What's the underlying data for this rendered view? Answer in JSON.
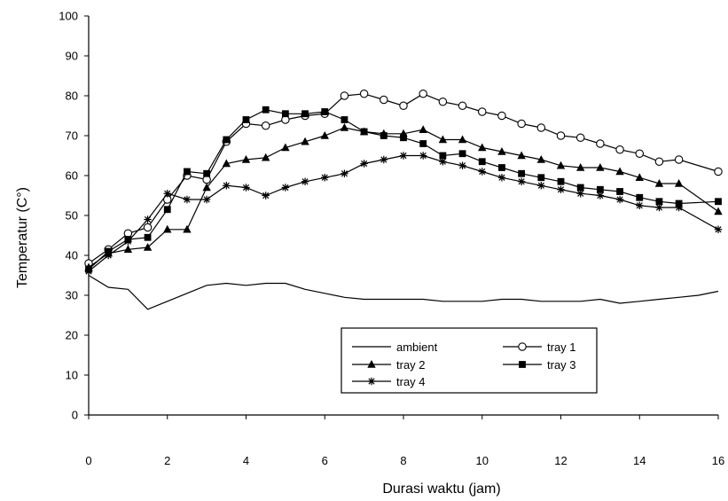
{
  "chart_data": {
    "type": "line",
    "title": "",
    "xlabel": "Durasi waktu (jam)",
    "ylabel": "Temperatur   (C°)",
    "xlim": [
      0,
      16
    ],
    "ylim": [
      0,
      100
    ],
    "xticks": [
      0,
      2,
      4,
      6,
      8,
      10,
      12,
      14,
      16
    ],
    "yticks": [
      0,
      10,
      20,
      30,
      40,
      50,
      60,
      70,
      80,
      90,
      100
    ],
    "grid": false,
    "legend_position": "bottom-right",
    "series": [
      {
        "name": "ambient",
        "marker": "none",
        "x": [
          0,
          0.5,
          1,
          1.5,
          2,
          2.5,
          3,
          3.5,
          4,
          4.5,
          5,
          5.5,
          6,
          6.5,
          7,
          7.5,
          8,
          8.5,
          9,
          9.5,
          10,
          10.5,
          11,
          11.5,
          12,
          12.5,
          13,
          13.5,
          14,
          14.5,
          15,
          15.5,
          16
        ],
        "y": [
          35,
          32,
          31.5,
          26.5,
          28.5,
          30.5,
          32.5,
          33,
          32.5,
          33,
          33,
          31.5,
          30.5,
          29.5,
          29,
          29,
          29,
          29,
          28.5,
          28.5,
          28.5,
          29,
          29,
          28.5,
          28.5,
          28.5,
          29,
          28,
          28.5,
          29,
          29.5,
          30,
          31
        ]
      },
      {
        "name": "tray 1",
        "marker": "open-circle",
        "x": [
          0,
          0.5,
          1,
          1.5,
          2,
          2.5,
          3,
          3.5,
          4,
          4.5,
          5,
          5.5,
          6,
          6.5,
          7,
          7.5,
          8,
          8.5,
          9,
          9.5,
          10,
          10.5,
          11,
          11.5,
          12,
          12.5,
          13,
          13.5,
          14,
          14.5,
          15,
          16
        ],
        "y": [
          38,
          41.5,
          45.5,
          47,
          54,
          60,
          59,
          68.5,
          73,
          72.5,
          74,
          75,
          75.5,
          80,
          80.5,
          79,
          77.5,
          80.5,
          78.5,
          77.5,
          76,
          75,
          73,
          72,
          70,
          69.5,
          68,
          66.5,
          65.5,
          63.5,
          64,
          61
        ]
      },
      {
        "name": "tray 2",
        "marker": "filled-triangle",
        "x": [
          0,
          0.5,
          1,
          1.5,
          2,
          2.5,
          3,
          3.5,
          4,
          4.5,
          5,
          5.5,
          6,
          6.5,
          7,
          7.5,
          8,
          8.5,
          9,
          9.5,
          10,
          10.5,
          11,
          11.5,
          12,
          12.5,
          13,
          13.5,
          14,
          14.5,
          15,
          16
        ],
        "y": [
          37,
          40.5,
          41.5,
          42,
          46.5,
          46.5,
          57,
          63,
          64,
          64.5,
          67,
          68.5,
          70,
          72,
          71,
          70.5,
          70.5,
          71.5,
          69,
          69,
          67,
          66,
          65,
          64,
          62.5,
          62,
          62,
          61,
          59.5,
          58,
          58,
          51
        ]
      },
      {
        "name": "tray 3",
        "marker": "filled-square",
        "x": [
          0,
          0.5,
          1,
          1.5,
          2,
          2.5,
          3,
          3.5,
          4,
          4.5,
          5,
          5.5,
          6,
          6.5,
          7,
          7.5,
          8,
          8.5,
          9,
          9.5,
          10,
          10.5,
          11,
          11.5,
          12,
          12.5,
          13,
          13.5,
          14,
          14.5,
          15,
          16
        ],
        "y": [
          36.5,
          41,
          44,
          44.5,
          51.5,
          61,
          60.5,
          69,
          74,
          76.5,
          75.5,
          75.5,
          76,
          74,
          71,
          70,
          69.5,
          68,
          65,
          65.5,
          63.5,
          62,
          60.5,
          59.5,
          58.5,
          57,
          56.5,
          56,
          54.5,
          53.5,
          53,
          53.5
        ]
      },
      {
        "name": "tray 4",
        "marker": "star",
        "x": [
          0,
          0.5,
          1,
          1.5,
          2,
          2.5,
          3,
          3.5,
          4,
          4.5,
          5,
          5.5,
          6,
          6.5,
          7,
          7.5,
          8,
          8.5,
          9,
          9.5,
          10,
          10.5,
          11,
          11.5,
          12,
          12.5,
          13,
          13.5,
          14,
          14.5,
          15,
          16
        ],
        "y": [
          36,
          40,
          43.5,
          49,
          55.5,
          54,
          54,
          57.5,
          57,
          55,
          57,
          58.5,
          59.5,
          60.5,
          63,
          64,
          65,
          65,
          63.5,
          62.5,
          61,
          59.5,
          58.5,
          57.5,
          56.5,
          55.5,
          55,
          54,
          52.5,
          52,
          52,
          46.5
        ]
      }
    ]
  }
}
